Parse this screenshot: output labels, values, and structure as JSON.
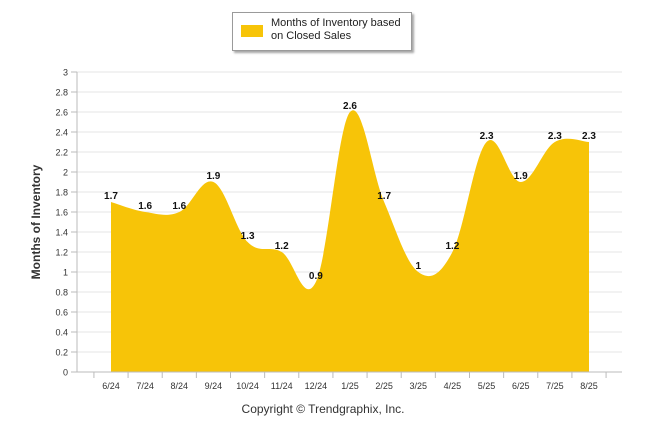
{
  "chart_data": {
    "type": "area",
    "categories": [
      "6/24",
      "7/24",
      "8/24",
      "9/24",
      "10/24",
      "11/24",
      "12/24",
      "1/25",
      "2/25",
      "3/25",
      "4/25",
      "5/25",
      "6/25",
      "7/25",
      "8/25"
    ],
    "series": [
      {
        "name": "Months of Inventory based on Closed Sales",
        "values": [
          1.7,
          1.6,
          1.6,
          1.9,
          1.3,
          1.2,
          0.9,
          2.6,
          1.7,
          1.0,
          1.2,
          2.3,
          1.9,
          2.3,
          2.3
        ],
        "data_labels": [
          "1.7",
          "1.6",
          "1.6",
          "1.9",
          "1.3",
          "1.2",
          "0.9",
          "2.6",
          "1.7",
          "1",
          "1.2",
          "2.3",
          "1.9",
          "2.3",
          "2.3"
        ],
        "color": "#F7C408"
      }
    ],
    "ylabel": "Months of Inventory",
    "xlabel": "",
    "ylim": [
      0,
      3
    ],
    "yticks": [
      "0",
      "0.2",
      "0.4",
      "0.6",
      "0.8",
      "1",
      "1.2",
      "1.4",
      "1.6",
      "1.8",
      "2",
      "2.2",
      "2.4",
      "2.6",
      "2.8",
      "3"
    ],
    "grid": true,
    "legend_position": "top-center"
  },
  "legend": {
    "line1": "Months of Inventory based",
    "line2": "on Closed Sales"
  },
  "footer": {
    "copyright": "Copyright © Trendgraphix, Inc."
  }
}
